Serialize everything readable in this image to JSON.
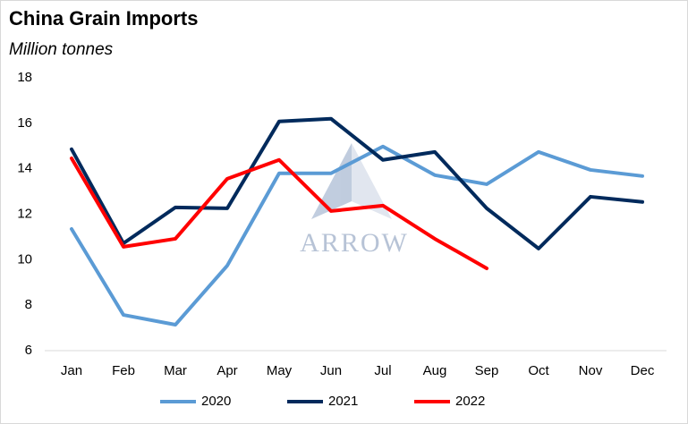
{
  "chart_data": {
    "type": "line",
    "title": "China Grain Imports",
    "subtitle": "Million tonnes",
    "watermark": "ARROW",
    "categories": [
      "Jan",
      "Feb",
      "Mar",
      "Apr",
      "May",
      "Jun",
      "Jul",
      "Aug",
      "Sep",
      "Oct",
      "Nov",
      "Dec"
    ],
    "series": [
      {
        "name": "2020",
        "color": "#5b9bd5",
        "values": [
          11.35,
          7.57,
          7.14,
          9.74,
          13.8,
          13.8,
          14.98,
          13.72,
          13.32,
          14.74,
          13.95,
          13.68
        ]
      },
      {
        "name": "2021",
        "color": "#002a5c",
        "values": [
          14.86,
          10.72,
          12.3,
          12.26,
          16.08,
          16.2,
          14.39,
          14.74,
          12.26,
          10.49,
          12.77,
          12.54
        ]
      },
      {
        "name": "2022",
        "color": "#ff0000",
        "values": [
          14.46,
          10.57,
          10.92,
          13.56,
          14.39,
          12.14,
          12.38,
          10.92,
          9.62,
          null,
          null,
          null
        ]
      }
    ],
    "ylim": [
      6,
      18
    ],
    "yticks": [
      6,
      8,
      10,
      12,
      14,
      16,
      18
    ],
    "grid": false,
    "legend": "bottom"
  }
}
